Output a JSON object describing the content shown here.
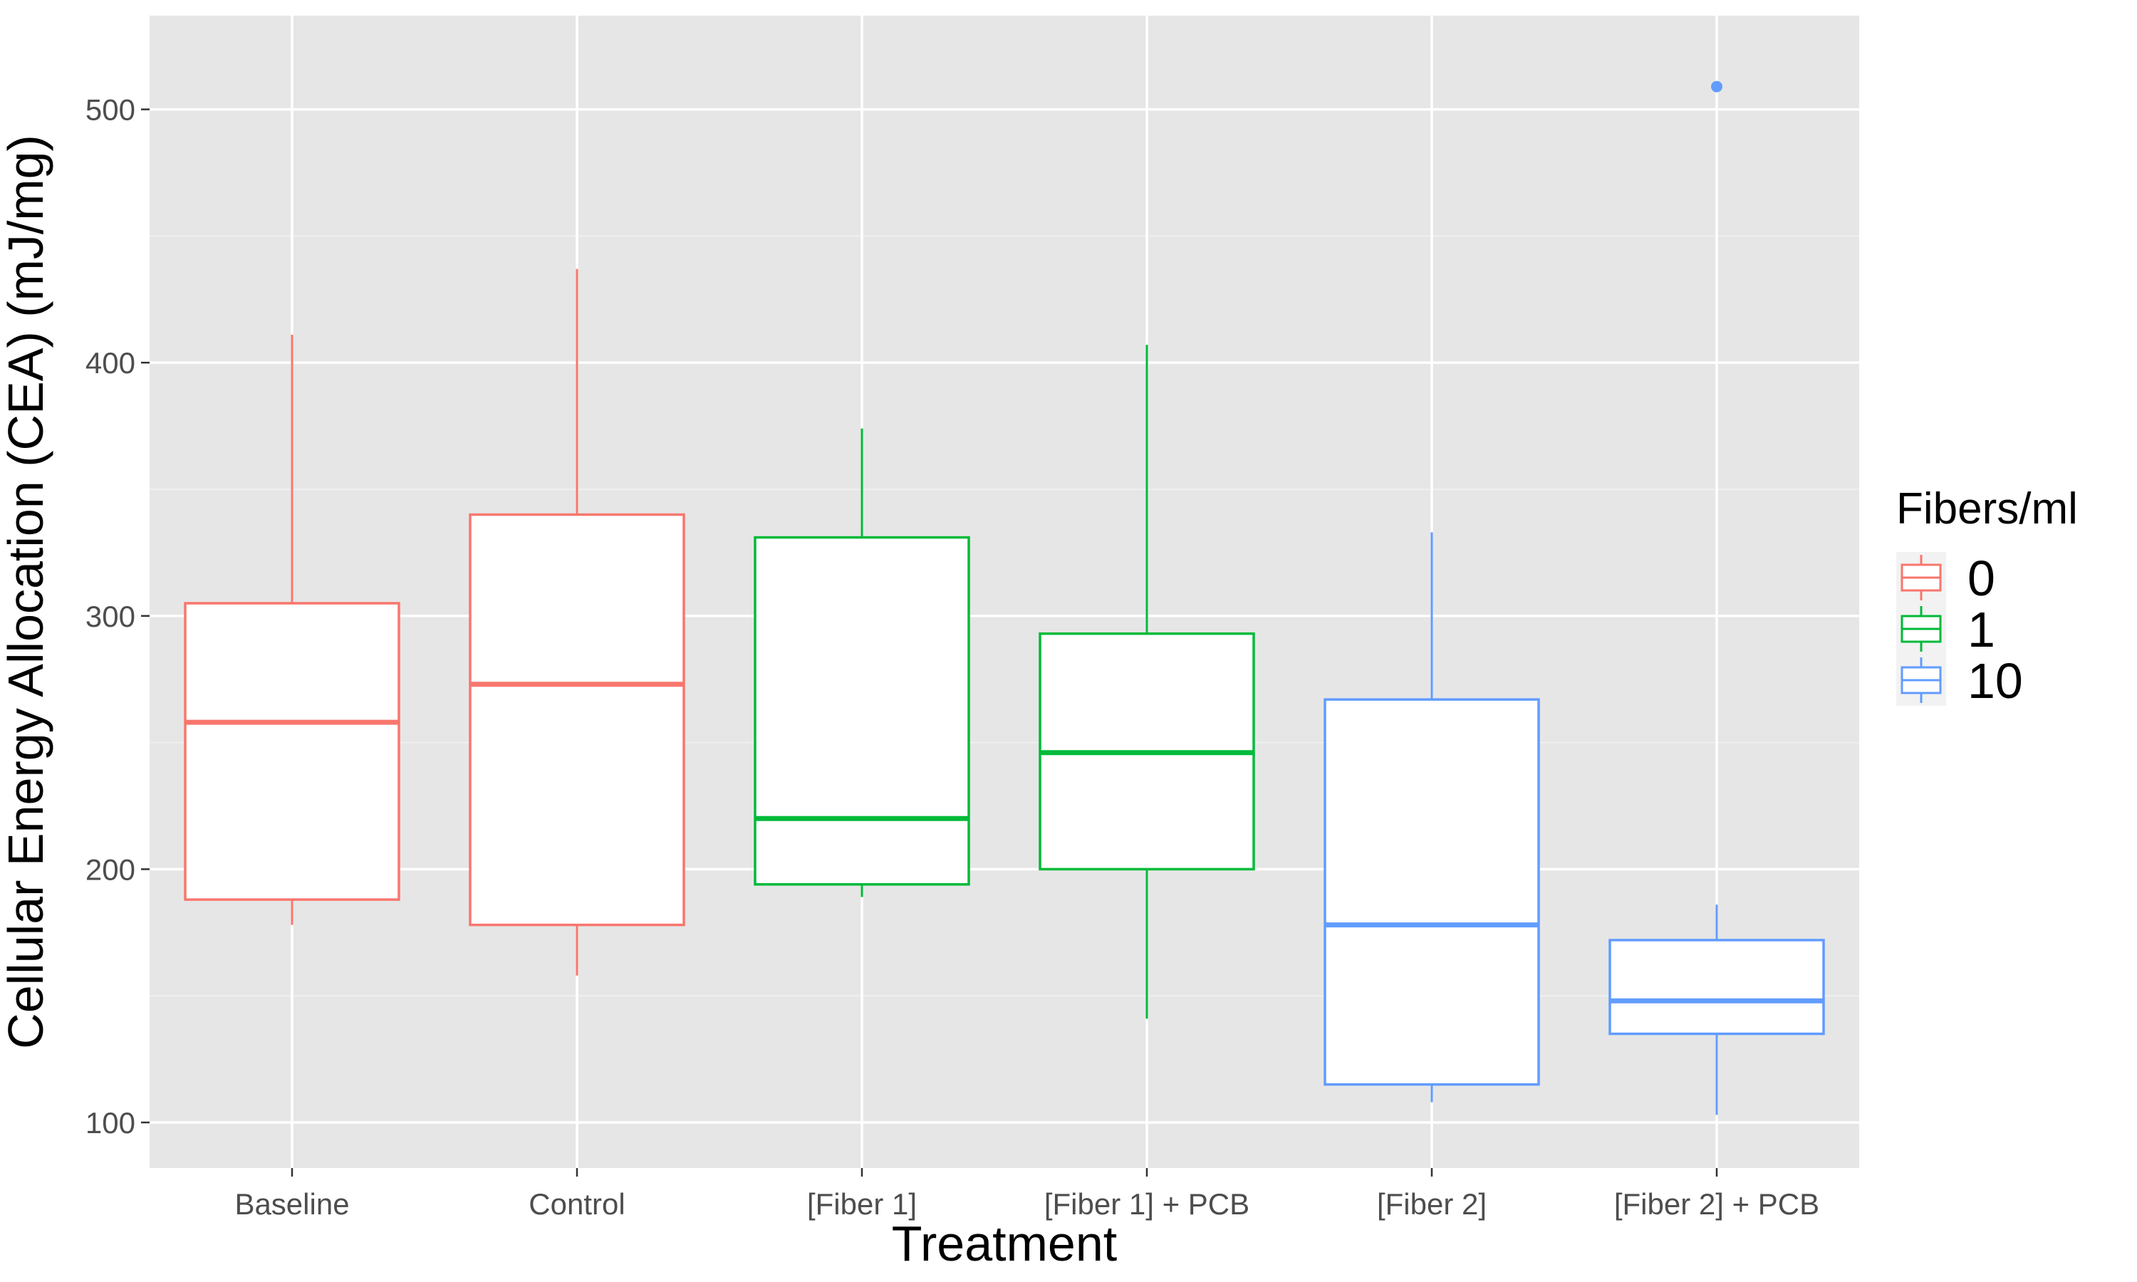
{
  "chart_data": {
    "type": "box",
    "xlabel": "Treatment",
    "ylabel": "Cellular Energy Allocation (CEA) (mJ/mg)",
    "ylim": [
      82,
      537
    ],
    "yticks": [
      100,
      200,
      300,
      400,
      500
    ],
    "grid": true,
    "categories": [
      "Baseline",
      "Control",
      "[Fiber 1]",
      "[Fiber 1] + PCB",
      "[Fiber 2]",
      "[Fiber 2] + PCB"
    ],
    "legend": {
      "title": "Fibers/ml",
      "position": "right",
      "entries": [
        {
          "label": "0",
          "color": "#F8766D"
        },
        {
          "label": "1",
          "color": "#00BA38"
        },
        {
          "label": "10",
          "color": "#619CFF"
        }
      ]
    },
    "series": [
      {
        "category": "Baseline",
        "group": "0",
        "color": "#F8766D",
        "lower_whisker": 178,
        "q1": 188,
        "median": 258,
        "q3": 305,
        "upper_whisker": 411,
        "outliers": []
      },
      {
        "category": "Control",
        "group": "0",
        "color": "#F8766D",
        "lower_whisker": 158,
        "q1": 178,
        "median": 273,
        "q3": 340,
        "upper_whisker": 437,
        "outliers": []
      },
      {
        "category": "[Fiber 1]",
        "group": "1",
        "color": "#00BA38",
        "lower_whisker": 189,
        "q1": 194,
        "median": 220,
        "q3": 331,
        "upper_whisker": 374,
        "outliers": []
      },
      {
        "category": "[Fiber 1] + PCB",
        "group": "1",
        "color": "#00BA38",
        "lower_whisker": 141,
        "q1": 200,
        "median": 246,
        "q3": 293,
        "upper_whisker": 407,
        "outliers": []
      },
      {
        "category": "[Fiber 2]",
        "group": "10",
        "color": "#619CFF",
        "lower_whisker": 108,
        "q1": 115,
        "median": 178,
        "q3": 267,
        "upper_whisker": 333,
        "outliers": []
      },
      {
        "category": "[Fiber 2] + PCB",
        "group": "10",
        "color": "#619CFF",
        "lower_whisker": 103,
        "q1": 135,
        "median": 148,
        "q3": 172,
        "upper_whisker": 186,
        "outliers": [
          509
        ]
      }
    ]
  }
}
